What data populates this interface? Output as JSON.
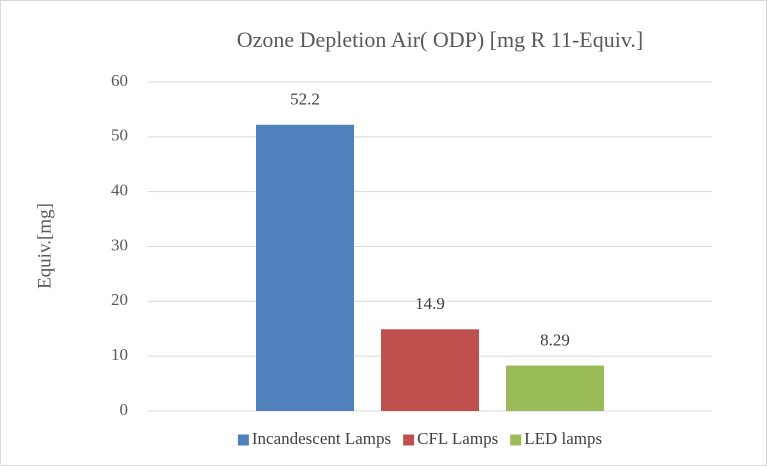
{
  "chart_data": {
    "type": "bar",
    "title": "Ozone Depletion Air( ODP) [mg R 11-Equiv.]",
    "y_label": "Equiv.[mg]",
    "categories": [
      null
    ],
    "series": [
      {
        "name": "Incandescent Lamps",
        "color": "#4f81bd",
        "values": [
          52.2
        ]
      },
      {
        "name": "CFL Lamps",
        "color": "#c0504d",
        "values": [
          14.9
        ]
      },
      {
        "name": "LED lamps",
        "color": "#9bbb59",
        "values": [
          8.29
        ]
      }
    ],
    "ylim": [
      0,
      60
    ],
    "yticks": [
      0,
      10,
      20,
      30,
      40,
      50,
      60
    ],
    "grid": true,
    "legend": "bottom"
  }
}
